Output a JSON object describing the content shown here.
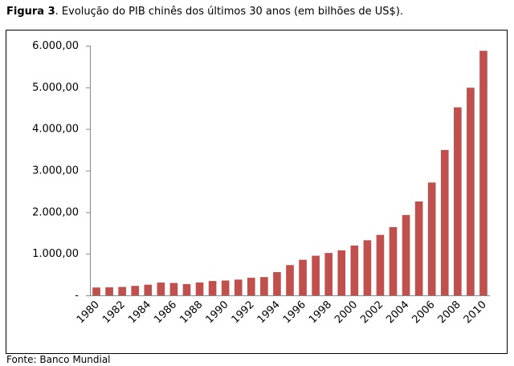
{
  "chart_data": {
    "type": "bar",
    "title_prefix": "Figura 3",
    "title": ". Evolução do PIB chinês dos últimos 30 anos (em bilhões de US$).",
    "source": "Fonte: Banco Mundial",
    "categories": [
      "1980",
      null,
      "1982",
      null,
      "1984",
      null,
      "1986",
      null,
      "1988",
      null,
      "1990",
      null,
      "1992",
      null,
      "1994",
      null,
      "1996",
      null,
      "1998",
      null,
      "2000",
      null,
      "2002",
      null,
      "2004",
      null,
      "2006",
      null,
      "2008",
      null,
      "2010"
    ],
    "values": [
      189,
      194,
      203,
      228,
      257,
      307,
      298,
      271,
      310,
      345,
      357,
      379,
      423,
      440,
      559,
      728,
      856,
      953,
      1019,
      1083,
      1198,
      1325,
      1454,
      1641,
      1932,
      2257,
      2713,
      3494,
      4520,
      4991,
      5878
    ],
    "color": "#c0504d",
    "ylim": [
      0,
      6000
    ],
    "yticks": [
      {
        "value": 0,
        "label": "-"
      },
      {
        "value": 1000,
        "label": "1.000,00"
      },
      {
        "value": 2000,
        "label": "2.000,00"
      },
      {
        "value": 3000,
        "label": "3.000,00"
      },
      {
        "value": 4000,
        "label": "4.000,00"
      },
      {
        "value": 5000,
        "label": "5.000,00"
      },
      {
        "value": 6000,
        "label": "6.000,00"
      }
    ]
  }
}
